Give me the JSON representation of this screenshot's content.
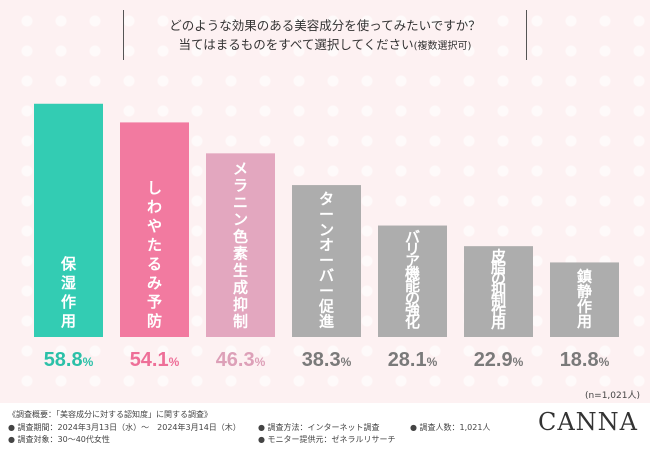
{
  "title": {
    "line1": "どのような効果のある美容成分を使ってみたいですか？",
    "line2": "当てはまるものをすべて選択してください",
    "line2_note": "(複数選択可)"
  },
  "sample_size": "(n=1,021人)",
  "chart_data": {
    "type": "bar",
    "title": "どのような効果のある美容成分を使ってみたいですか？ 当てはまるものをすべて選択してください(複数選択可)",
    "categories": [
      "保湿作用",
      "しわ・たるみ予防",
      "メラニン色素生成抑制",
      "ターンオーバー促進",
      "バリア機能の強化",
      "皮脂の抑制作用",
      "鎮静作用"
    ],
    "bar_text": [
      "保湿作用",
      "しわやたるみ予防",
      "メラニン色素生成抑制",
      "ターンオーバー促進",
      "バリア機能の強化",
      "皮脂の抑制作用",
      "鎮静作用"
    ],
    "values": [
      58.8,
      54.1,
      46.3,
      38.3,
      28.1,
      22.9,
      18.8
    ],
    "value_labels": [
      {
        "main": "58.8",
        "unit": "%"
      },
      {
        "main": "54.1",
        "unit": "%"
      },
      {
        "main": "46.3",
        "unit": "%"
      },
      {
        "main": "38.3",
        "unit": "%"
      },
      {
        "main": "28.1",
        "unit": "%"
      },
      {
        "main": "22.9",
        "unit": "%"
      },
      {
        "main": "18.8",
        "unit": "%"
      }
    ],
    "colors": [
      "#33ccb3",
      "#f27aa0",
      "#e3a7bf",
      "#adadad",
      "#adadad",
      "#adadad",
      "#adadad"
    ],
    "label_colors": [
      "#2cc0a8",
      "#ee6f98",
      "#dda0b8",
      "#7a7a7a",
      "#7a7a7a",
      "#7a7a7a",
      "#7a7a7a"
    ],
    "ylim": [
      0,
      60
    ],
    "grid": false
  },
  "footer": {
    "survey_title": "《調査概要：「美容成分に対する認知度」に関する調査》",
    "period": "● 調査期間：2024年3月13日（水）～　2024年3月14日（木）",
    "target": "● 調査対象：30～40代女性",
    "method": "● 調査方法：インターネット調査",
    "provider": "● モニター提供元：ゼネラルリサーチ",
    "count": "● 調査人数：1,021人",
    "logo": "CANNA"
  }
}
